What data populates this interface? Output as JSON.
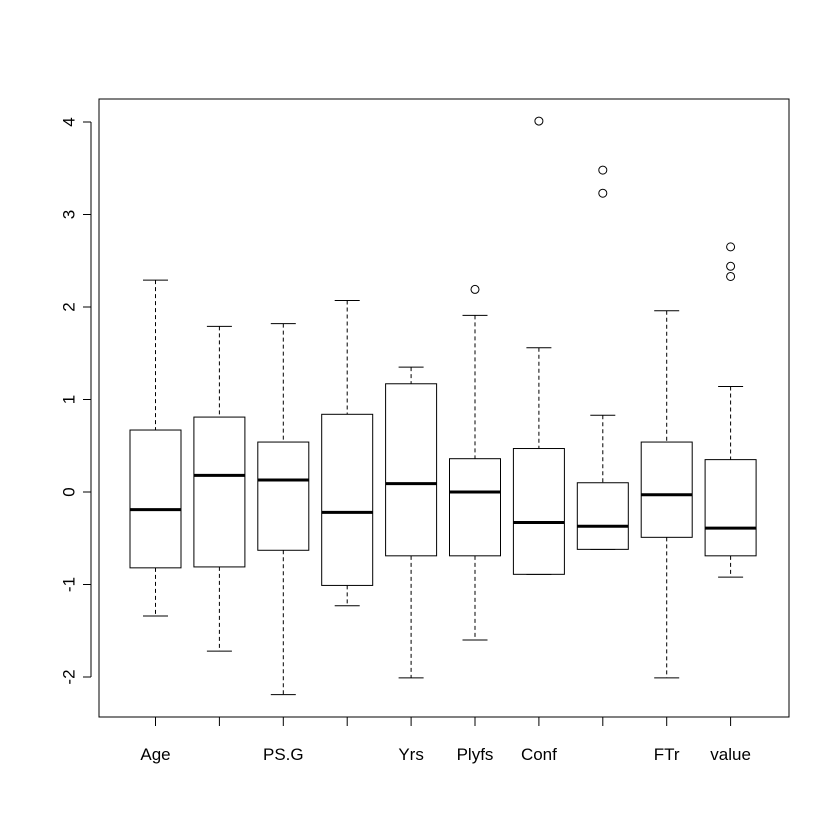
{
  "chart_data": {
    "type": "boxplot",
    "title": "",
    "xlabel": "",
    "ylabel": "",
    "ylim": [
      -2.4,
      4.2
    ],
    "yticks": [
      -2,
      -1,
      0,
      1,
      2,
      3,
      4
    ],
    "ytick_labels": [
      "-2",
      "-1",
      "0",
      "1",
      "2",
      "3",
      "4"
    ],
    "x_tick_labels": [
      "Age",
      "",
      "PS.G",
      "",
      "Yrs",
      "Plyfs",
      "Conf",
      "",
      "FTr",
      "value"
    ],
    "categories": [
      "Age",
      "",
      "PS.G",
      "",
      "Yrs",
      "Plyfs",
      "Conf",
      "",
      "FTr",
      "value"
    ],
    "boxes": [
      {
        "label": "Age",
        "whisker_low": -1.34,
        "q1": -0.82,
        "median": -0.19,
        "q3": 0.67,
        "whisker_high": 2.29,
        "outliers": []
      },
      {
        "label": "",
        "whisker_low": -1.72,
        "q1": -0.81,
        "median": 0.18,
        "q3": 0.81,
        "whisker_high": 1.79,
        "outliers": []
      },
      {
        "label": "PS.G",
        "whisker_low": -2.19,
        "q1": -0.63,
        "median": 0.13,
        "q3": 0.54,
        "whisker_high": 1.82,
        "outliers": []
      },
      {
        "label": "",
        "whisker_low": -1.23,
        "q1": -1.01,
        "median": -0.22,
        "q3": 0.84,
        "whisker_high": 2.07,
        "outliers": []
      },
      {
        "label": "Yrs",
        "whisker_low": -2.01,
        "q1": -0.69,
        "median": 0.09,
        "q3": 1.17,
        "whisker_high": 1.35,
        "outliers": []
      },
      {
        "label": "Plyfs",
        "whisker_low": -1.6,
        "q1": -0.69,
        "median": 0.0,
        "q3": 0.36,
        "whisker_high": 1.91,
        "outliers": [
          2.19
        ]
      },
      {
        "label": "Conf",
        "whisker_low": -0.89,
        "q1": -0.89,
        "median": -0.33,
        "q3": 0.47,
        "whisker_high": 1.56,
        "outliers": [
          4.01
        ]
      },
      {
        "label": "",
        "whisker_low": -0.62,
        "q1": -0.62,
        "median": -0.37,
        "q3": 0.1,
        "whisker_high": 0.83,
        "outliers": [
          3.23,
          3.48
        ]
      },
      {
        "label": "FTr",
        "whisker_low": -2.01,
        "q1": -0.49,
        "median": -0.03,
        "q3": 0.54,
        "whisker_high": 1.96,
        "outliers": []
      },
      {
        "label": "value",
        "whisker_low": -0.92,
        "q1": -0.69,
        "median": -0.39,
        "q3": 0.35,
        "whisker_high": 1.14,
        "outliers": [
          2.33,
          2.44,
          2.65
        ]
      }
    ],
    "grid": false,
    "legend": "none"
  }
}
